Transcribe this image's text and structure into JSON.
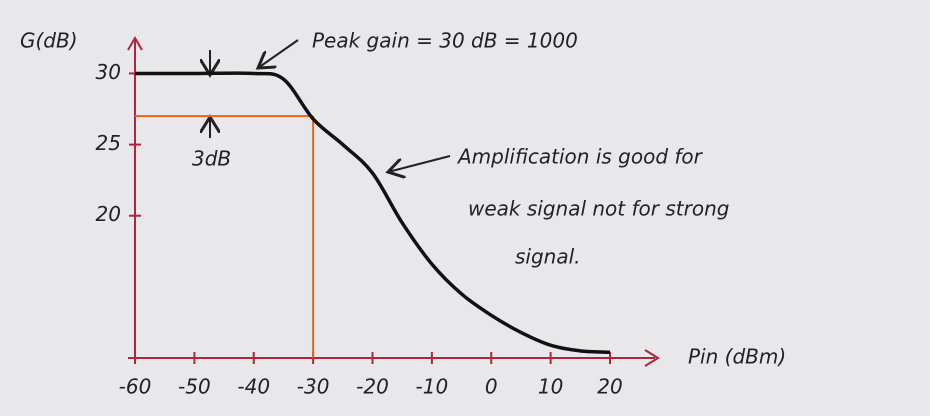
{
  "chart_data": {
    "type": "line",
    "y_label": "G(dB)",
    "x_label": "Pin (dBm)",
    "annotations": [
      "Peak gain = 30 dB = 1000",
      "3dB",
      "Amplification is good for",
      "weak signal not for strong",
      "signal."
    ],
    "x": [
      -60,
      -50,
      -40,
      -35,
      -30,
      -25,
      -20,
      -15,
      -10,
      -5,
      0,
      5,
      10,
      15,
      20
    ],
    "series": [
      {
        "name": "G",
        "color": "#111111",
        "values": [
          30,
          30,
          30,
          29.6,
          26.8,
          25,
          23,
          19.5,
          16.6,
          14.5,
          13,
          11.8,
          10.9,
          10.5,
          10.4
        ]
      }
    ],
    "reference": {
      "x": -30,
      "y": 27,
      "color": "#e0651e"
    },
    "xlim": [
      -60,
      20
    ],
    "xticks": [
      -60,
      -50,
      -40,
      -30,
      -20,
      -10,
      0,
      10,
      20
    ],
    "ylim": [
      10,
      32
    ],
    "yticks": [
      20,
      25,
      30
    ]
  }
}
